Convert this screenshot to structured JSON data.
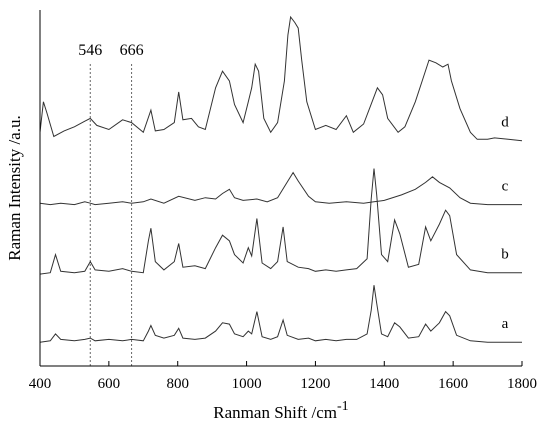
{
  "chart_data": {
    "type": "line",
    "xlabel": "Ranman Shift /cm",
    "xlabel_superscript": "-1",
    "ylabel": "Raman Intensity /a.u.",
    "xlim": [
      400,
      1800
    ],
    "xticks": [
      400,
      600,
      800,
      1000,
      1200,
      1400,
      1600,
      1800
    ],
    "y_ticks_shown": false,
    "grid": false,
    "reference_lines": [
      {
        "x": 546,
        "label": "546"
      },
      {
        "x": 666,
        "label": "666"
      }
    ],
    "series": [
      {
        "name": "a",
        "offset": 0,
        "points": [
          [
            400,
            0.02
          ],
          [
            430,
            0.03
          ],
          [
            445,
            0.08
          ],
          [
            460,
            0.04
          ],
          [
            500,
            0.03
          ],
          [
            530,
            0.04
          ],
          [
            546,
            0.05
          ],
          [
            560,
            0.03
          ],
          [
            600,
            0.04
          ],
          [
            640,
            0.03
          ],
          [
            666,
            0.04
          ],
          [
            700,
            0.03
          ],
          [
            715,
            0.1
          ],
          [
            722,
            0.14
          ],
          [
            735,
            0.07
          ],
          [
            760,
            0.05
          ],
          [
            790,
            0.07
          ],
          [
            803,
            0.12
          ],
          [
            815,
            0.05
          ],
          [
            850,
            0.04
          ],
          [
            880,
            0.05
          ],
          [
            910,
            0.1
          ],
          [
            930,
            0.16
          ],
          [
            950,
            0.15
          ],
          [
            965,
            0.08
          ],
          [
            990,
            0.06
          ],
          [
            1005,
            0.1
          ],
          [
            1015,
            0.08
          ],
          [
            1030,
            0.24
          ],
          [
            1045,
            0.06
          ],
          [
            1070,
            0.04
          ],
          [
            1090,
            0.06
          ],
          [
            1106,
            0.18
          ],
          [
            1118,
            0.07
          ],
          [
            1150,
            0.04
          ],
          [
            1180,
            0.05
          ],
          [
            1200,
            0.03
          ],
          [
            1230,
            0.04
          ],
          [
            1260,
            0.03
          ],
          [
            1290,
            0.04
          ],
          [
            1320,
            0.04
          ],
          [
            1350,
            0.08
          ],
          [
            1362,
            0.25
          ],
          [
            1370,
            0.43
          ],
          [
            1378,
            0.3
          ],
          [
            1392,
            0.08
          ],
          [
            1410,
            0.06
          ],
          [
            1430,
            0.16
          ],
          [
            1445,
            0.13
          ],
          [
            1470,
            0.05
          ],
          [
            1500,
            0.06
          ],
          [
            1520,
            0.15
          ],
          [
            1535,
            0.1
          ],
          [
            1560,
            0.16
          ],
          [
            1578,
            0.24
          ],
          [
            1590,
            0.21
          ],
          [
            1610,
            0.07
          ],
          [
            1650,
            0.03
          ],
          [
            1700,
            0.02
          ],
          [
            1750,
            0.02
          ],
          [
            1800,
            0.02
          ]
        ]
      },
      {
        "name": "b",
        "offset": 0.5,
        "points": [
          [
            400,
            0.01
          ],
          [
            430,
            0.02
          ],
          [
            445,
            0.15
          ],
          [
            460,
            0.03
          ],
          [
            500,
            0.02
          ],
          [
            530,
            0.03
          ],
          [
            546,
            0.1
          ],
          [
            560,
            0.04
          ],
          [
            600,
            0.03
          ],
          [
            640,
            0.05
          ],
          [
            666,
            0.03
          ],
          [
            700,
            0.02
          ],
          [
            715,
            0.25
          ],
          [
            722,
            0.34
          ],
          [
            735,
            0.1
          ],
          [
            760,
            0.04
          ],
          [
            790,
            0.1
          ],
          [
            803,
            0.23
          ],
          [
            815,
            0.06
          ],
          [
            850,
            0.07
          ],
          [
            880,
            0.05
          ],
          [
            910,
            0.2
          ],
          [
            930,
            0.29
          ],
          [
            950,
            0.25
          ],
          [
            965,
            0.15
          ],
          [
            990,
            0.09
          ],
          [
            1005,
            0.2
          ],
          [
            1015,
            0.14
          ],
          [
            1030,
            0.41
          ],
          [
            1045,
            0.09
          ],
          [
            1070,
            0.05
          ],
          [
            1090,
            0.1
          ],
          [
            1106,
            0.35
          ],
          [
            1118,
            0.1
          ],
          [
            1150,
            0.06
          ],
          [
            1180,
            0.05
          ],
          [
            1200,
            0.03
          ],
          [
            1230,
            0.04
          ],
          [
            1260,
            0.03
          ],
          [
            1290,
            0.04
          ],
          [
            1320,
            0.05
          ],
          [
            1350,
            0.12
          ],
          [
            1362,
            0.55
          ],
          [
            1370,
            0.77
          ],
          [
            1378,
            0.58
          ],
          [
            1392,
            0.15
          ],
          [
            1410,
            0.1
          ],
          [
            1430,
            0.4
          ],
          [
            1445,
            0.3
          ],
          [
            1470,
            0.06
          ],
          [
            1500,
            0.08
          ],
          [
            1520,
            0.35
          ],
          [
            1535,
            0.25
          ],
          [
            1560,
            0.37
          ],
          [
            1578,
            0.47
          ],
          [
            1590,
            0.43
          ],
          [
            1610,
            0.15
          ],
          [
            1650,
            0.04
          ],
          [
            1700,
            0.02
          ],
          [
            1750,
            0.02
          ],
          [
            1800,
            0.02
          ]
        ]
      },
      {
        "name": "c",
        "offset": 1.0,
        "points": [
          [
            400,
            0.02
          ],
          [
            430,
            0.01
          ],
          [
            460,
            0.02
          ],
          [
            500,
            0.01
          ],
          [
            530,
            0.03
          ],
          [
            546,
            0.02
          ],
          [
            560,
            0.01
          ],
          [
            600,
            0.02
          ],
          [
            640,
            0.03
          ],
          [
            666,
            0.02
          ],
          [
            700,
            0.03
          ],
          [
            722,
            0.05
          ],
          [
            760,
            0.02
          ],
          [
            803,
            0.07
          ],
          [
            850,
            0.04
          ],
          [
            880,
            0.06
          ],
          [
            910,
            0.05
          ],
          [
            930,
            0.09
          ],
          [
            950,
            0.12
          ],
          [
            965,
            0.06
          ],
          [
            990,
            0.04
          ],
          [
            1030,
            0.05
          ],
          [
            1060,
            0.03
          ],
          [
            1090,
            0.06
          ],
          [
            1120,
            0.18
          ],
          [
            1135,
            0.24
          ],
          [
            1150,
            0.18
          ],
          [
            1180,
            0.07
          ],
          [
            1200,
            0.03
          ],
          [
            1240,
            0.02
          ],
          [
            1290,
            0.03
          ],
          [
            1340,
            0.02
          ],
          [
            1370,
            0.03
          ],
          [
            1400,
            0.04
          ],
          [
            1450,
            0.08
          ],
          [
            1490,
            0.12
          ],
          [
            1520,
            0.17
          ],
          [
            1540,
            0.21
          ],
          [
            1560,
            0.17
          ],
          [
            1590,
            0.13
          ],
          [
            1620,
            0.06
          ],
          [
            1650,
            0.02
          ],
          [
            1700,
            0.01
          ],
          [
            1800,
            0.01
          ]
        ]
      },
      {
        "name": "d",
        "offset": 1.45,
        "points": [
          [
            400,
            0.08
          ],
          [
            410,
            0.3
          ],
          [
            420,
            0.22
          ],
          [
            440,
            0.05
          ],
          [
            470,
            0.09
          ],
          [
            500,
            0.12
          ],
          [
            530,
            0.16
          ],
          [
            546,
            0.18
          ],
          [
            565,
            0.13
          ],
          [
            600,
            0.1
          ],
          [
            640,
            0.17
          ],
          [
            666,
            0.15
          ],
          [
            700,
            0.08
          ],
          [
            722,
            0.24
          ],
          [
            735,
            0.09
          ],
          [
            760,
            0.1
          ],
          [
            790,
            0.15
          ],
          [
            803,
            0.37
          ],
          [
            815,
            0.17
          ],
          [
            840,
            0.18
          ],
          [
            860,
            0.12
          ],
          [
            880,
            0.1
          ],
          [
            910,
            0.4
          ],
          [
            930,
            0.52
          ],
          [
            950,
            0.45
          ],
          [
            965,
            0.28
          ],
          [
            990,
            0.15
          ],
          [
            1005,
            0.3
          ],
          [
            1015,
            0.4
          ],
          [
            1025,
            0.57
          ],
          [
            1035,
            0.52
          ],
          [
            1050,
            0.18
          ],
          [
            1070,
            0.08
          ],
          [
            1090,
            0.15
          ],
          [
            1110,
            0.45
          ],
          [
            1120,
            0.78
          ],
          [
            1128,
            0.91
          ],
          [
            1140,
            0.87
          ],
          [
            1150,
            0.83
          ],
          [
            1160,
            0.6
          ],
          [
            1175,
            0.3
          ],
          [
            1200,
            0.1
          ],
          [
            1230,
            0.13
          ],
          [
            1260,
            0.1
          ],
          [
            1290,
            0.2
          ],
          [
            1310,
            0.08
          ],
          [
            1340,
            0.14
          ],
          [
            1360,
            0.27
          ],
          [
            1380,
            0.4
          ],
          [
            1395,
            0.35
          ],
          [
            1410,
            0.18
          ],
          [
            1440,
            0.08
          ],
          [
            1460,
            0.12
          ],
          [
            1490,
            0.3
          ],
          [
            1510,
            0.45
          ],
          [
            1530,
            0.6
          ],
          [
            1550,
            0.58
          ],
          [
            1570,
            0.55
          ],
          [
            1585,
            0.57
          ],
          [
            1595,
            0.45
          ],
          [
            1620,
            0.25
          ],
          [
            1650,
            0.08
          ],
          [
            1670,
            0.03
          ],
          [
            1700,
            0.03
          ],
          [
            1720,
            0.04
          ],
          [
            1760,
            0.03
          ],
          [
            1800,
            0.02
          ]
        ]
      }
    ]
  }
}
